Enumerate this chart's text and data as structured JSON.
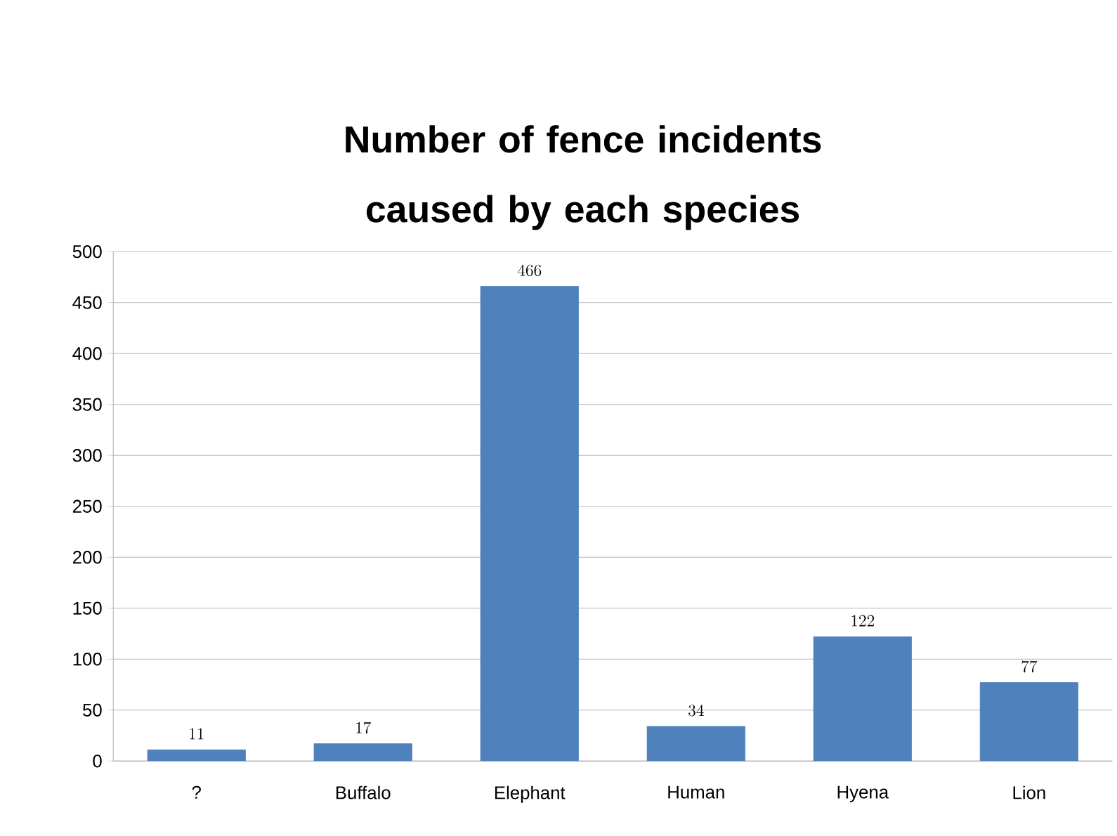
{
  "chart_data": {
    "type": "bar",
    "title": "Number of fence incidents caused by each species",
    "categories": [
      "?",
      "Buffalo",
      "Elephant",
      "Human",
      "Hyena",
      "Lion"
    ],
    "values": [
      11,
      17,
      466,
      34,
      122,
      77
    ],
    "color": "#4f81bd",
    "ylim": [
      0,
      500
    ],
    "yticks": [
      0,
      50,
      100,
      150,
      200,
      250,
      300,
      350,
      400,
      450,
      500
    ],
    "grid": "y",
    "data_labels": true
  }
}
